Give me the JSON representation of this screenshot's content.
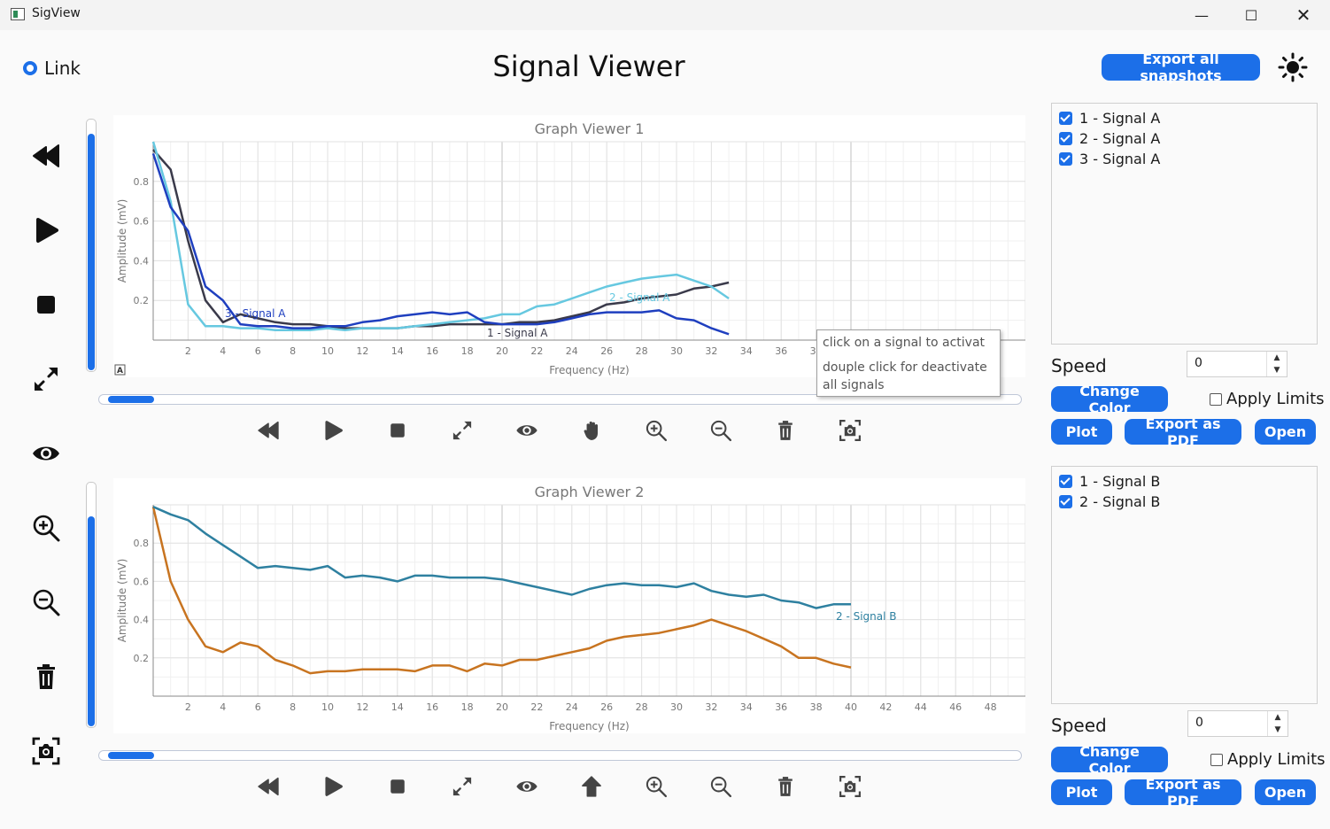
{
  "window": {
    "title": "SigView"
  },
  "header": {
    "title": "Signal Viewer",
    "link_label": "Link",
    "export_all_label": "Export all snapshots"
  },
  "sidebar": {
    "icons": [
      "rewind-icon",
      "play-icon",
      "stop-icon",
      "expand-icon",
      "eye-icon",
      "zoom-in-icon",
      "zoom-out-icon",
      "trash-icon",
      "snapshot-icon"
    ]
  },
  "graph1": {
    "title": "Graph Viewer 1",
    "xlabel": "Frequency (Hz)",
    "ylabel": "Amplitude (mV)",
    "toolbar_icons": [
      "rewind-icon",
      "play-icon",
      "stop-icon",
      "expand-icon",
      "eye-icon",
      "hand-icon",
      "zoom-in-icon",
      "zoom-out-icon",
      "trash-icon",
      "snapshot-icon"
    ],
    "signals_list": [
      "1 - Signal A",
      "2 - Signal A",
      "3 - Signal A"
    ],
    "speed_label": "Speed",
    "speed_value": "0",
    "change_color_label": "Change Color",
    "apply_limits_label": "Apply Limits",
    "plot_label": "Plot",
    "export_pdf_label": "Export as PDF",
    "open_label": "Open",
    "vertical_slider_level": 0.94,
    "horizontal_slider_level": 0.05,
    "tooltip": {
      "line1": "click on a signal to activat",
      "line2": "douple click for deactivate all signals"
    }
  },
  "graph2": {
    "title": "Graph Viewer 2",
    "xlabel": "Frequency (Hz)",
    "ylabel": "Amplitude (mV)",
    "toolbar_icons": [
      "rewind-icon",
      "play-icon",
      "stop-icon",
      "expand-icon",
      "eye-icon",
      "up-arrow-icon",
      "zoom-in-icon",
      "zoom-out-icon",
      "trash-icon",
      "snapshot-icon"
    ],
    "signals_list": [
      "1 - Signal B",
      "2 - Signal B"
    ],
    "speed_label": "Speed",
    "speed_value": "0",
    "change_color_label": "Change Color",
    "apply_limits_label": "Apply Limits",
    "plot_label": "Plot",
    "export_pdf_label": "Export as PDF",
    "open_label": "Open",
    "vertical_slider_level": 0.86,
    "horizontal_slider_level": 0.05
  },
  "chart_data": [
    {
      "type": "line",
      "title": "Graph Viewer 1",
      "xlabel": "Frequency (Hz)",
      "ylabel": "Amplitude (mV)",
      "xlim": [
        0,
        50
      ],
      "ylim": [
        0,
        1
      ],
      "xticks": [
        2,
        4,
        6,
        8,
        10,
        12,
        14,
        16,
        18,
        20,
        22,
        24,
        26,
        28,
        30,
        32,
        34,
        36,
        38
      ],
      "yticks": [
        0.2,
        0.4,
        0.6,
        0.8
      ],
      "grid": true,
      "series": [
        {
          "name": "1 - Signal A",
          "color": "#3a3a4a",
          "x": [
            0,
            1,
            2,
            3,
            4,
            5,
            6,
            7,
            8,
            9,
            10,
            11,
            12,
            13,
            14,
            15,
            16,
            17,
            18,
            19,
            20,
            21,
            22,
            23,
            24,
            25,
            26,
            27,
            28,
            29,
            30,
            31,
            32,
            33
          ],
          "y": [
            0.96,
            0.86,
            0.5,
            0.2,
            0.09,
            0.13,
            0.11,
            0.09,
            0.08,
            0.08,
            0.07,
            0.06,
            0.06,
            0.06,
            0.06,
            0.07,
            0.07,
            0.08,
            0.08,
            0.08,
            0.08,
            0.09,
            0.09,
            0.1,
            0.12,
            0.14,
            0.18,
            0.19,
            0.21,
            0.22,
            0.23,
            0.26,
            0.27,
            0.29
          ]
        },
        {
          "name": "2 - Signal A",
          "color": "#66c8e0",
          "x": [
            0,
            1,
            2,
            3,
            4,
            5,
            6,
            7,
            8,
            9,
            10,
            11,
            12,
            13,
            14,
            15,
            16,
            17,
            18,
            19,
            20,
            21,
            22,
            23,
            24,
            25,
            26,
            27,
            28,
            29,
            30,
            31,
            32,
            33
          ],
          "y": [
            1.0,
            0.7,
            0.18,
            0.07,
            0.07,
            0.06,
            0.06,
            0.05,
            0.05,
            0.05,
            0.06,
            0.05,
            0.06,
            0.06,
            0.06,
            0.07,
            0.08,
            0.09,
            0.1,
            0.11,
            0.13,
            0.13,
            0.17,
            0.18,
            0.21,
            0.24,
            0.27,
            0.29,
            0.31,
            0.32,
            0.33,
            0.3,
            0.27,
            0.21
          ]
        },
        {
          "name": "3 - Signal A",
          "color": "#1f3fbf",
          "x": [
            0,
            1,
            2,
            3,
            4,
            5,
            6,
            7,
            8,
            9,
            10,
            11,
            12,
            13,
            14,
            15,
            16,
            17,
            18,
            19,
            20,
            21,
            22,
            23,
            24,
            25,
            26,
            27,
            28,
            29,
            30,
            31,
            32,
            33
          ],
          "y": [
            0.94,
            0.67,
            0.55,
            0.27,
            0.2,
            0.08,
            0.07,
            0.07,
            0.06,
            0.06,
            0.07,
            0.07,
            0.09,
            0.1,
            0.12,
            0.13,
            0.14,
            0.13,
            0.14,
            0.09,
            0.08,
            0.08,
            0.08,
            0.09,
            0.11,
            0.13,
            0.14,
            0.14,
            0.14,
            0.15,
            0.11,
            0.1,
            0.06,
            0.03
          ]
        }
      ],
      "annotations": [
        "3 - Signal A",
        "2 - Signal A",
        "1 - Signal A"
      ]
    },
    {
      "type": "line",
      "title": "Graph Viewer 2",
      "xlabel": "Frequency (Hz)",
      "ylabel": "Amplitude (mV)",
      "xlim": [
        0,
        50
      ],
      "ylim": [
        0,
        1
      ],
      "xticks": [
        2,
        4,
        6,
        8,
        10,
        12,
        14,
        16,
        18,
        20,
        22,
        24,
        26,
        28,
        30,
        32,
        34,
        36,
        38,
        40,
        42,
        44,
        46,
        48
      ],
      "yticks": [
        0.2,
        0.4,
        0.6,
        0.8
      ],
      "grid": true,
      "series": [
        {
          "name": "1 - Signal B",
          "color": "#c87420",
          "x": [
            0,
            1,
            2,
            3,
            4,
            5,
            6,
            7,
            8,
            9,
            10,
            11,
            12,
            13,
            14,
            15,
            16,
            17,
            18,
            19,
            20,
            21,
            22,
            23,
            24,
            25,
            26,
            27,
            28,
            29,
            30,
            31,
            32,
            33,
            34,
            35,
            36,
            37,
            38,
            39,
            40
          ],
          "y": [
            0.99,
            0.6,
            0.4,
            0.26,
            0.23,
            0.28,
            0.26,
            0.19,
            0.16,
            0.12,
            0.13,
            0.13,
            0.14,
            0.14,
            0.14,
            0.13,
            0.16,
            0.16,
            0.13,
            0.17,
            0.16,
            0.19,
            0.19,
            0.21,
            0.23,
            0.25,
            0.29,
            0.31,
            0.32,
            0.33,
            0.35,
            0.37,
            0.4,
            0.37,
            0.34,
            0.3,
            0.26,
            0.2,
            0.2,
            0.17,
            0.15
          ]
        },
        {
          "name": "2 - Signal B",
          "color": "#2e80a0",
          "x": [
            0,
            1,
            2,
            3,
            4,
            5,
            6,
            7,
            8,
            9,
            10,
            11,
            12,
            13,
            14,
            15,
            16,
            17,
            18,
            19,
            20,
            21,
            22,
            23,
            24,
            25,
            26,
            27,
            28,
            29,
            30,
            31,
            32,
            33,
            34,
            35,
            36,
            37,
            38,
            39,
            40
          ],
          "y": [
            0.99,
            0.95,
            0.92,
            0.85,
            0.79,
            0.73,
            0.67,
            0.68,
            0.67,
            0.66,
            0.68,
            0.62,
            0.63,
            0.62,
            0.6,
            0.63,
            0.63,
            0.62,
            0.62,
            0.62,
            0.61,
            0.59,
            0.57,
            0.55,
            0.53,
            0.56,
            0.58,
            0.59,
            0.58,
            0.58,
            0.57,
            0.59,
            0.55,
            0.53,
            0.52,
            0.53,
            0.5,
            0.49,
            0.46,
            0.48,
            0.48
          ]
        }
      ],
      "annotations": [
        "2 - Signal B"
      ]
    }
  ]
}
